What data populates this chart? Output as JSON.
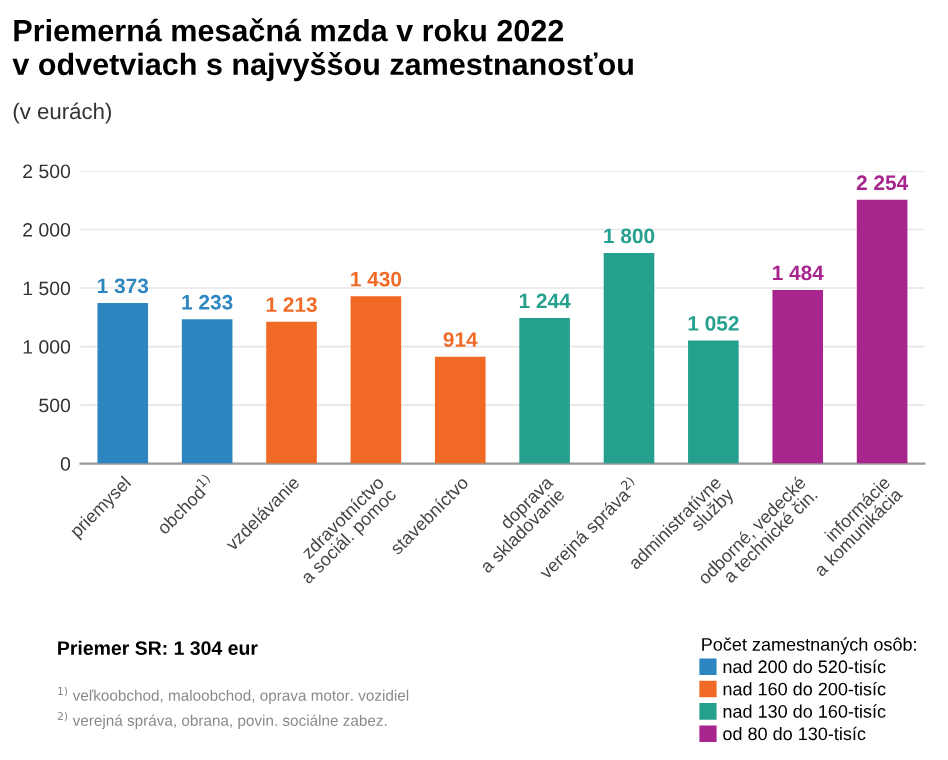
{
  "chart_data": {
    "type": "bar",
    "title": "Priemerná mesačná mzda v roku 2022\nv odvetviach s najvyššou zamestnanosťou",
    "subtitle": "(v eurách)",
    "categories": [
      "priemysel",
      "obchod$^{1)}$",
      "vzdelávanie",
      "zdravotníctvo\na sociál. pomoc",
      "stavebníctvo",
      "doprava\na skladovanie",
      "verejná správa$^{2)}$",
      "administratívne\nslužby",
      "odborné, vedecké\na technické čin.",
      "informácie\na komunikácia"
    ],
    "series": [
      {
        "name": "nad 200 do 520-tisíc",
        "color": "#2e86c1",
        "values": [
          1373,
          1233,
          null,
          null,
          null,
          null,
          null,
          null,
          null,
          null
        ],
        "value_labels": [
          "1 373",
          "1 233",
          null,
          null,
          null,
          null,
          null,
          null,
          null,
          null
        ]
      },
      {
        "name": "nad 160 do 200-tisíc",
        "color": "#f06a25",
        "values": [
          null,
          null,
          1213,
          1430,
          914,
          null,
          null,
          null,
          null,
          null
        ],
        "value_labels": [
          null,
          null,
          "1 213",
          "1 430",
          "914",
          null,
          null,
          null,
          null,
          null
        ]
      },
      {
        "name": "nad 130 do 160-tisíc",
        "color": "#26a08e",
        "values": [
          null,
          null,
          null,
          null,
          null,
          1244,
          1800,
          1052,
          null,
          null
        ],
        "value_labels": [
          null,
          null,
          null,
          null,
          null,
          "1 244",
          "1 800",
          "1 052",
          null,
          null
        ]
      },
      {
        "name": "od 80 do 130-tisíc",
        "color": "#a8258e",
        "values": [
          null,
          null,
          null,
          null,
          null,
          null,
          null,
          null,
          1484,
          2254
        ],
        "value_labels": [
          null,
          null,
          null,
          null,
          null,
          null,
          null,
          null,
          "1 484",
          "2 254"
        ]
      }
    ],
    "legend_title": "Počet zamestnaných osôb:",
    "legend": "bottom right",
    "ylim": [
      0,
      2500
    ],
    "yticks": [
      0,
      500,
      {
        "value": 1000,
        "label": "1 000"
      },
      {
        "value": 1500,
        "label": "1 500"
      },
      {
        "value": 2000,
        "label": "2 000"
      },
      {
        "value": 2500,
        "label": "2 500"
      }
    ],
    "grid": "y",
    "annotations": [
      "Priemer SR: 1 304 eur",
      "$^{1)}$ veľkoobchod, maloobchod, oprava motor. vozidiel",
      "$^{2)}$ verejná správa, obrana, povin. sociálne zabez."
    ]
  }
}
